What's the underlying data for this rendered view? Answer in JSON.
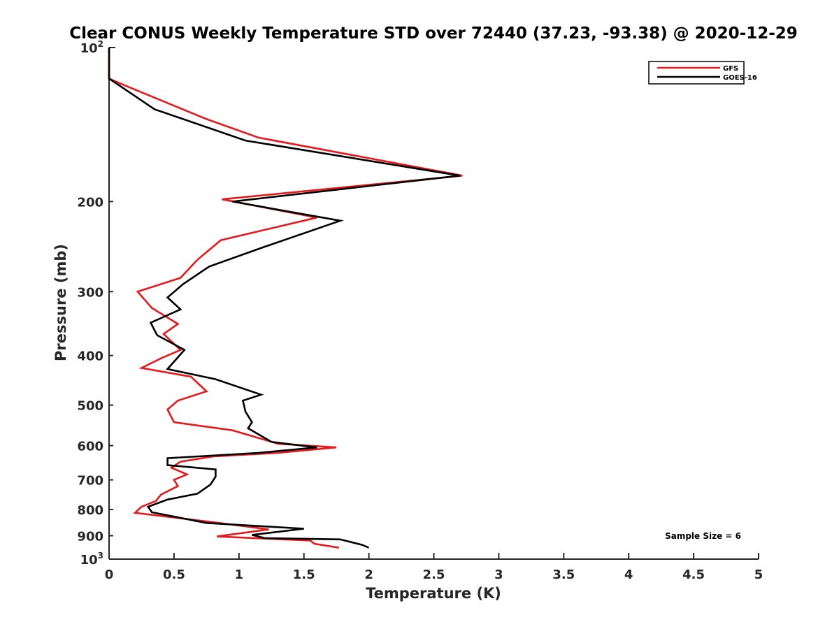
{
  "chart_data": {
    "type": "line",
    "title": "Clear CONUS Weekly Temperature STD over 72440 (37.23, -93.38) @ 2020-12-29",
    "xlabel": "Temperature (K)",
    "ylabel": "Pressure (mb)",
    "xlim": [
      0,
      5
    ],
    "ylim": [
      100,
      1000
    ],
    "y_scale": "log",
    "y_reversed": true,
    "x_ticks": [
      "0",
      "0.5",
      "1",
      "1.5",
      "2",
      "2.5",
      "3",
      "3.5",
      "4",
      "4.5",
      "5"
    ],
    "y_ticks": [
      {
        "value": 100,
        "base": "10",
        "exp": "2"
      },
      {
        "value": 200,
        "label": "200"
      },
      {
        "value": 300,
        "label": "300"
      },
      {
        "value": 400,
        "label": "400"
      },
      {
        "value": 500,
        "label": "500"
      },
      {
        "value": 600,
        "label": "600"
      },
      {
        "value": 700,
        "label": "700"
      },
      {
        "value": 800,
        "label": "800"
      },
      {
        "value": 900,
        "label": "900"
      },
      {
        "value": 1000,
        "base": "10",
        "exp": "3"
      }
    ],
    "grid": false,
    "legend_position": "top-right",
    "annotation": "Sample Size = 6",
    "series": [
      {
        "name": "GFS",
        "color": "#e41a1c",
        "points": [
          [
            0.0,
            100
          ],
          [
            0.0,
            115
          ],
          [
            0.1,
            118
          ],
          [
            0.75,
            138
          ],
          [
            1.15,
            150
          ],
          [
            2.72,
            178
          ],
          [
            0.87,
            198
          ],
          [
            1.6,
            215
          ],
          [
            0.86,
            238
          ],
          [
            0.68,
            260
          ],
          [
            0.55,
            282
          ],
          [
            0.22,
            300
          ],
          [
            0.33,
            323
          ],
          [
            0.53,
            347
          ],
          [
            0.42,
            363
          ],
          [
            0.55,
            390
          ],
          [
            0.4,
            405
          ],
          [
            0.25,
            423
          ],
          [
            0.63,
            440
          ],
          [
            0.75,
            470
          ],
          [
            0.53,
            490
          ],
          [
            0.45,
            510
          ],
          [
            0.5,
            540
          ],
          [
            0.95,
            560
          ],
          [
            1.3,
            595
          ],
          [
            1.75,
            605
          ],
          [
            1.3,
            620
          ],
          [
            0.8,
            630
          ],
          [
            0.55,
            645
          ],
          [
            0.48,
            663
          ],
          [
            0.6,
            683
          ],
          [
            0.5,
            700
          ],
          [
            0.53,
            720
          ],
          [
            0.4,
            748
          ],
          [
            0.36,
            770
          ],
          [
            0.25,
            790
          ],
          [
            0.2,
            812
          ],
          [
            0.85,
            850
          ],
          [
            1.23,
            875
          ],
          [
            0.83,
            903
          ],
          [
            1.55,
            920
          ],
          [
            1.58,
            933
          ],
          [
            1.77,
            950
          ]
        ]
      },
      {
        "name": "GOES-16",
        "color": "#000000",
        "points": [
          [
            0.0,
            100
          ],
          [
            0.0,
            115
          ],
          [
            0.35,
            132
          ],
          [
            1.05,
            152
          ],
          [
            2.7,
            178
          ],
          [
            0.95,
            200
          ],
          [
            1.78,
            218
          ],
          [
            1.2,
            245
          ],
          [
            0.77,
            268
          ],
          [
            0.57,
            290
          ],
          [
            0.45,
            308
          ],
          [
            0.55,
            325
          ],
          [
            0.32,
            345
          ],
          [
            0.37,
            365
          ],
          [
            0.58,
            390
          ],
          [
            0.45,
            425
          ],
          [
            0.82,
            445
          ],
          [
            1.17,
            477
          ],
          [
            1.03,
            490
          ],
          [
            1.05,
            515
          ],
          [
            1.1,
            540
          ],
          [
            1.07,
            555
          ],
          [
            1.25,
            590
          ],
          [
            1.6,
            605
          ],
          [
            1.15,
            620
          ],
          [
            0.45,
            635
          ],
          [
            0.45,
            655
          ],
          [
            0.82,
            668
          ],
          [
            0.82,
            690
          ],
          [
            0.78,
            715
          ],
          [
            0.68,
            745
          ],
          [
            0.45,
            765
          ],
          [
            0.3,
            790
          ],
          [
            0.33,
            810
          ],
          [
            0.75,
            850
          ],
          [
            1.5,
            872
          ],
          [
            1.1,
            897
          ],
          [
            1.2,
            910
          ],
          [
            1.78,
            915
          ],
          [
            1.95,
            938
          ],
          [
            2.0,
            950
          ]
        ]
      }
    ]
  }
}
